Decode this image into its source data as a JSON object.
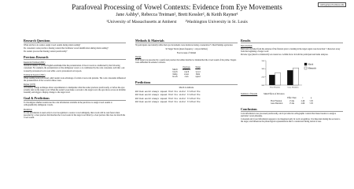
{
  "header": {
    "title": "Parafoveal Processing of Vowel Contexts: Evidence from Eye Movements",
    "authors": "Jane Ashby¹, Rebecca Treiman², Brett Kessler², & Keith Rayner¹",
    "affiliations": "¹University of Massachusetts at Amherst        ²Washington University in St. Louis",
    "email": "ashby@psych.umass.edu"
  },
  "left": [
    {
      "heading": "Research Questions",
      "blocks": [
        {
          "text": "When and how do readers assign vowel sounds during silent reading?"
        },
        {
          "text": "Do consonant codas provide a biasing context that facilitates vowel identification during silent reading?"
        },
        {
          "text": "Do readers process that biasing context parafoveally?"
        }
      ]
    },
    {
      "heading": "Previous Research",
      "blocks": [
        {
          "label": "Kessler & Treiman (2001)"
        },
        {
          "text": "Statistical studies of written English established that the pronunciation of most vowels is conditioned by the following consonant. For example, the pronunciation of the ambiguous vowel oo is conditioned by the coda consonant, such that -ook is usually pronounced as in cook while -oon is pronounced as in spoon."
        },
        {
          "label": "Treiman & Kessler (2001)"
        },
        {
          "text": "When reading nonwords aloud, adult readers took advantage of certain vowel-coda patterns. The coda consonants influenced the pronunciation of the vowels in these cases."
        },
        {
          "label": "Rayner (1975)"
        },
        {
          "text": "A boundary change technique allows experimenters to manipulate what the reader previews parafoveally, or before the eyes actually land on the target word. When the reader's eyes make a saccade to the target word, the eyes move across an invisible boundary and trigger a display change to the target word."
        }
      ]
    },
    {
      "heading": "Goal & Predictions",
      "blocks": [
        {
          "text": "To investigate whether readers use the coda information available in the parafovea to assign vowel sounds to orthographically ambiguous vowels."
        },
        {
          "label": "Prediction"
        },
        {
          "text": "If coda information is used early in word recognition to resolve vowel ambiguity, then words will be read faster when preceded by a clear preview that matches the vowel sound of the target word than by a clear preview that does not match the vowel sound."
        }
      ]
    }
  ],
  "middle": [
    {
      "heading": "Methods & Materials",
      "blocks": [
        {
          "text": "36 participants read silently while their eye movements were monitored using a Generation V Dual Purkinje eyetracker."
        },
        {
          "center": "32 Target Words (mean frequency = 44 per million)"
        },
        {
          "center": "Four Groups of Stimuli"
        },
        {
          "label": "Design"
        },
        {
          "text": "Each target was preceded by a parafoveal preview that either matched or mismatched the vowel sound of the prime. Targets were embedded in sentence contexts."
        }
      ]
    }
  ],
  "stimuli": {
    "headers": [
      "Previous",
      "Target"
    ],
    "sub": [
      "Match",
      "Mismatch"
    ],
    "rows": [
      [
        "beach",
        "couch",
        "wood"
      ],
      [
        "hump",
        "sweat",
        "blunt"
      ],
      [
        "hooch",
        "cuck",
        "squad"
      ]
    ]
  },
  "predictions": {
    "heading": "Predictions",
    "match": "Match Conditions",
    "sentences": [
      "William would always squeak that his sister trotted the",
      "William would always squeak that his sister trotted the",
      "William would always squeak that his sister trotted the",
      "William would always squeak that his sister trotted the"
    ]
  },
  "right": [
    {
      "heading": "Results",
      "blocks": [
        {
          "label": "Data Analysis"
        },
        {
          "text": "Data were excluded from the analyses if the fixation prior to landing in the target region was more than 7 characters away from the beginning of target word."
        },
        {
          "text": "Preview type (match or mismatch) was treated as a within-factor in both the participant and items analyses."
        }
      ]
    }
  ],
  "chart_data": {
    "type": "bar",
    "categories": [
      "First Fixation",
      "Gaze Duration"
    ],
    "series": [
      {
        "name": "Match",
        "color": "#111111",
        "values": [
          262,
          290
        ]
      },
      {
        "name": "Mismatch",
        "color": "#ffffff",
        "values": [
          275,
          305
        ]
      }
    ],
    "ylim": [
      200,
      350
    ],
    "yticks": [
      200,
      250,
      300,
      350
    ]
  },
  "summary": {
    "label": "Summary of Results",
    "caption": "Main Effects of Previews",
    "headers": [
      "",
      "Effect Size",
      "t",
      "p"
    ],
    "rows": [
      [
        "First Fixation",
        "13 ms",
        "2.46",
        "<.05"
      ],
      [
        "Gaze Duration",
        "15 ms",
        "2.66",
        "<.05"
      ]
    ]
  },
  "conclusions": {
    "heading": "Conclusions",
    "blocks": [
      {
        "text": "Coda information was processed parafoveally, and it provided an orthographic context that biased readers to assign a particular vowel phoneme."
      },
      {
        "text": "Consonant and vowel information appears to be integrated early in word recognition. It is important during the saccade to the target, and influences the phonological representations that is constructed during lexical access."
      }
    ]
  }
}
